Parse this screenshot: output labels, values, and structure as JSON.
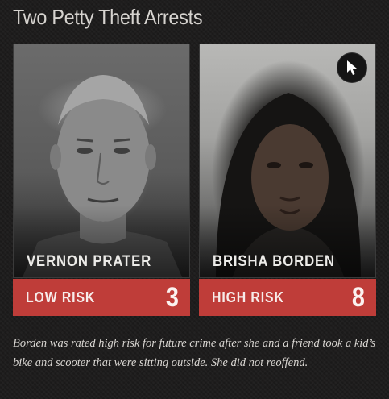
{
  "title": "Two Petty Theft Arrests",
  "cards": [
    {
      "name": "VERNON PRATER",
      "risk_label": "LOW RISK",
      "risk_score": "3"
    },
    {
      "name": "BRISHA BORDEN",
      "risk_label": "HIGH RISK",
      "risk_score": "8"
    }
  ],
  "cursor_icon": "cursor-arrow-icon",
  "caption": "Borden was rated high risk for future crime after she and a friend took a kid’s bike and scooter that were sitting outside. She did not reoffend.",
  "colors": {
    "background": "#1c1b1b",
    "risk_bar": "#bf3d39",
    "title_text": "#d6d3cf"
  }
}
